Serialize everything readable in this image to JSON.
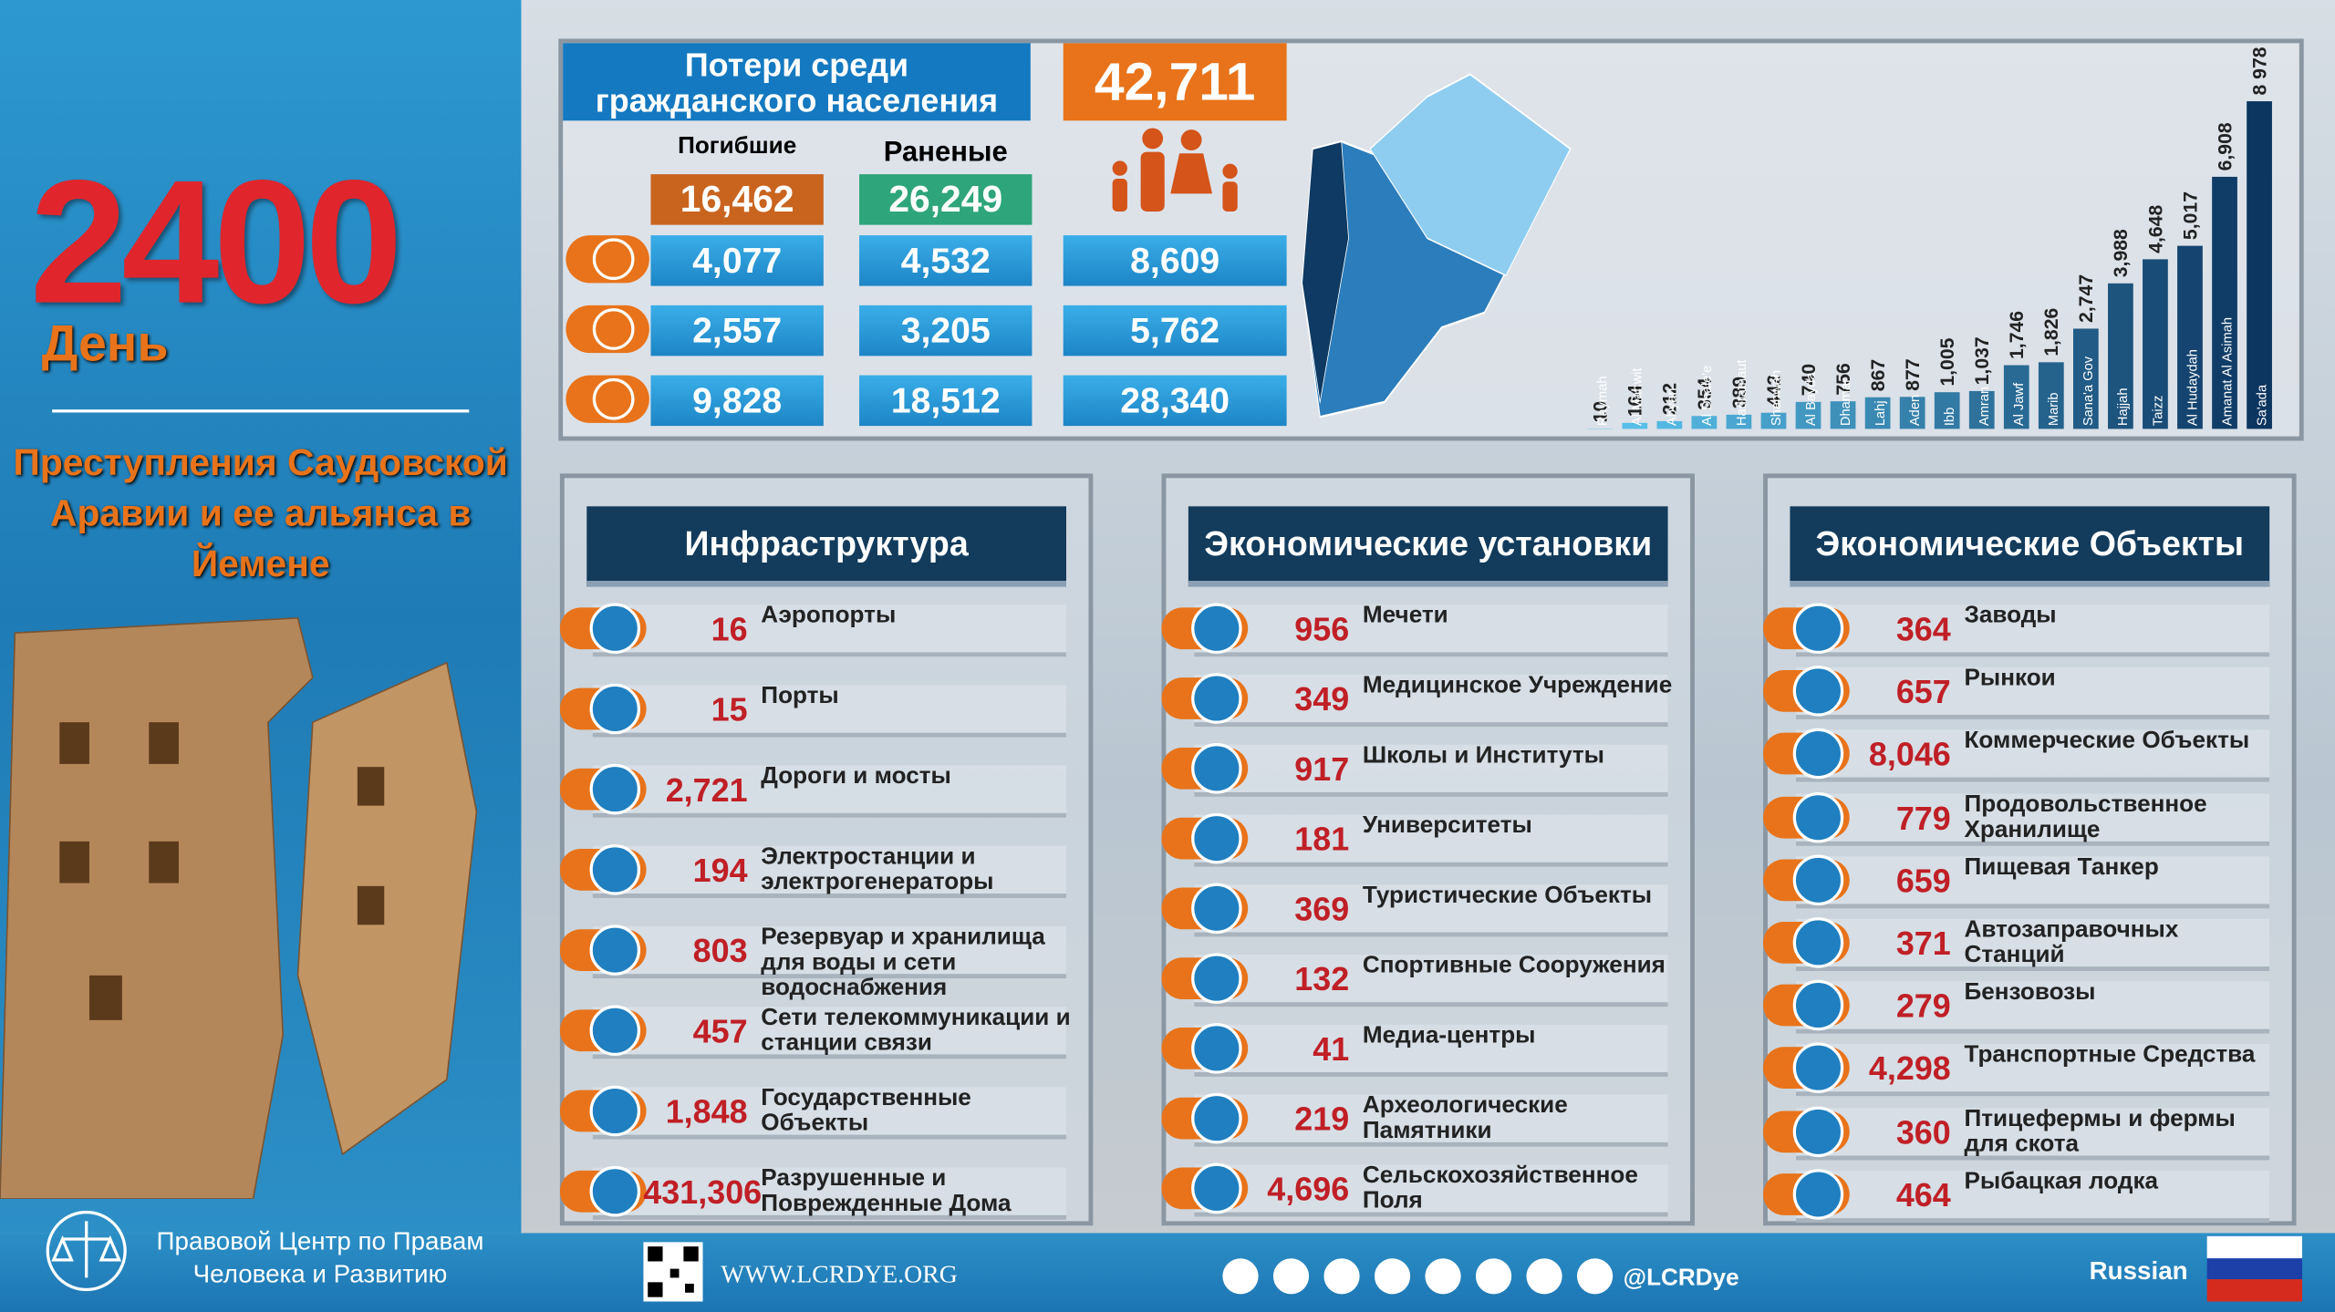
{
  "header": {
    "day_number": "2400",
    "day_label": "День",
    "subtitle_lines": [
      "Преступления Саудовской",
      "Аравии и ее альянса в Йемене"
    ]
  },
  "casualties": {
    "title_lines": [
      "Потери среди",
      "гражданского населения"
    ],
    "total": "42,711",
    "columns": [
      "Погибшие",
      "Раненые"
    ],
    "totals": [
      "16,462",
      "26,249"
    ],
    "rows": [
      [
        "4,077",
        "4,532",
        "8,609"
      ],
      [
        "2,557",
        "3,205",
        "5,762"
      ],
      [
        "9,828",
        "18,512",
        "28,340"
      ]
    ]
  },
  "chart_data": {
    "type": "bar",
    "categories": [
      "Raymah",
      "Al Mahwit",
      "Abyan",
      "Al Dhale'e",
      "Hadramaut",
      "Shabwah",
      "Al Bayda",
      "Dhamar",
      "Lahj",
      "Aden",
      "Ibb",
      "Amran",
      "Al Jawf",
      "Marib",
      "Sana'a Gov",
      "Hajjah",
      "Taizz",
      "Al Hudaydah",
      "Amanat Al Asimah",
      "Sa'ada"
    ],
    "values": [
      10,
      164,
      212,
      354,
      389,
      442,
      740,
      756,
      867,
      877,
      1005,
      1037,
      1746,
      1826,
      2747,
      3988,
      4648,
      5017,
      6908,
      8978
    ],
    "value_labels": [
      "10",
      "164",
      "212",
      "354",
      "389",
      "442",
      "740",
      "756",
      "867",
      "877",
      "1,005",
      "1,037",
      "1,746",
      "1,826",
      "2,747",
      "3,988",
      "4,648",
      "5,017",
      "6,908",
      "8 978"
    ],
    "color_start": "#5cc6ef",
    "color_end": "#0c3560"
  },
  "sections": [
    {
      "title": "Инфраструктура",
      "items": [
        {
          "value": "16",
          "label": "Аэропорты"
        },
        {
          "value": "15",
          "label": "Порты"
        },
        {
          "value": "2,721",
          "label": "Дороги и мосты"
        },
        {
          "value": "194",
          "label": "Электростанции и электрогенераторы"
        },
        {
          "value": "803",
          "label": "Резервуар и хранилища для воды и сети водоснабжения"
        },
        {
          "value": "457",
          "label": "Сети телекоммуникации и станции связи"
        },
        {
          "value": "1,848",
          "label": "Государственные Объекты"
        },
        {
          "value": "431,306",
          "label": "Разрушенные и Поврежденные Дома"
        }
      ]
    },
    {
      "title": "Экономические установки",
      "items": [
        {
          "value": "956",
          "label": "Мечети"
        },
        {
          "value": "349",
          "label": "Медицинское Учреждение"
        },
        {
          "value": "917",
          "label": "Школы и Институты"
        },
        {
          "value": "181",
          "label": "Университеты"
        },
        {
          "value": "369",
          "label": "Туристические Объекты"
        },
        {
          "value": "132",
          "label": "Спортивные Сооружения"
        },
        {
          "value": "41",
          "label": "Медиа-центры"
        },
        {
          "value": "219",
          "label": "Археологические Памятники"
        },
        {
          "value": "4,696",
          "label": "Сельскохозяйственное Поля"
        }
      ]
    },
    {
      "title": "Экономические Объекты",
      "items": [
        {
          "value": "364",
          "label": "Заводы"
        },
        {
          "value": "657",
          "label": "Рынкои"
        },
        {
          "value": "8,046",
          "label": "Коммерческие Объекты"
        },
        {
          "value": "779",
          "label": "Продовольственное Хранилище"
        },
        {
          "value": "659",
          "label": "Пищевая Танкер"
        },
        {
          "value": "371",
          "label": "Автозаправочных Станций"
        },
        {
          "value": "279",
          "label": "Бензовозы"
        },
        {
          "value": "4,298",
          "label": "Транспортные Средства"
        },
        {
          "value": "360",
          "label": "Птицефермы и фермы для скота"
        },
        {
          "value": "464",
          "label": "Рыбацкая лодка"
        }
      ]
    }
  ],
  "footer": {
    "org_lines": [
      "Правовой Центр по Правам",
      "Человека и Развитию"
    ],
    "website": "WWW.LCRDYE.ORG",
    "handle": "@LCRDye",
    "language": "Russian"
  }
}
